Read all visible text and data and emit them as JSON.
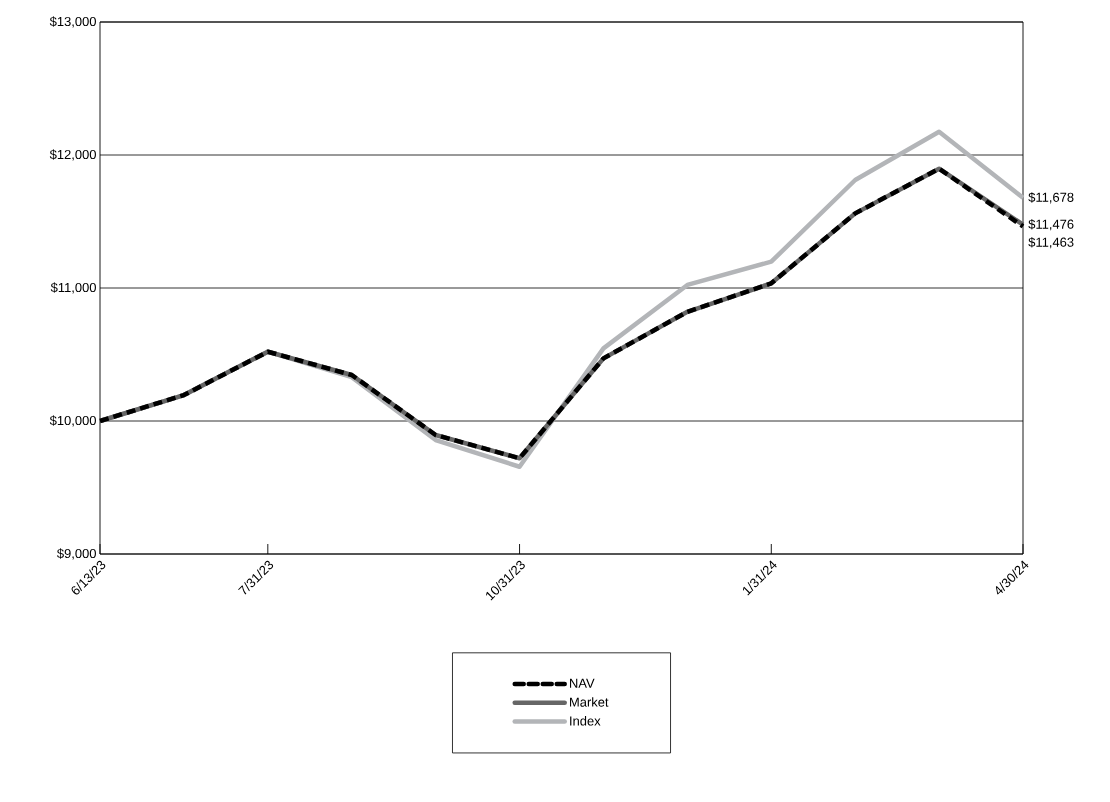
{
  "chart_data": {
    "type": "line",
    "categories": [
      "6/13/23",
      null,
      "7/31/23",
      null,
      null,
      "10/31/23",
      null,
      null,
      "1/31/24",
      null,
      null,
      "4/30/24"
    ],
    "ylim": [
      9000,
      13000
    ],
    "yticks": [
      {
        "value": 9000,
        "label": "$9,000"
      },
      {
        "value": 10000,
        "label": "$10,000"
      },
      {
        "value": 11000,
        "label": "$11,000"
      },
      {
        "value": 12000,
        "label": "$12,000"
      },
      {
        "value": 13000,
        "label": "$13,000"
      }
    ],
    "grid": "y",
    "legend": "bottom",
    "marker": "none",
    "series": [
      {
        "name": "NAV",
        "color": "#000000",
        "line_style": "dashed",
        "values": [
          10000,
          10195,
          10521,
          10346,
          9895,
          9720,
          10471,
          10821,
          11035,
          11561,
          11897,
          11463
        ],
        "value_labels": [
          null,
          null,
          null,
          null,
          null,
          null,
          null,
          null,
          null,
          null,
          null,
          "$11,463"
        ]
      },
      {
        "name": "Market",
        "color": "#666666",
        "line_style": "solid",
        "values": [
          10000,
          10195,
          10521,
          10346,
          9895,
          9720,
          10471,
          10821,
          11035,
          11561,
          11897,
          11476
        ],
        "value_labels": [
          null,
          null,
          null,
          null,
          null,
          null,
          null,
          null,
          null,
          null,
          null,
          "$11,476"
        ]
      },
      {
        "name": "Index",
        "color": "#b3b5b8",
        "line_style": "solid",
        "values": [
          10000,
          10195,
          10521,
          10330,
          9857,
          9656,
          10546,
          11023,
          11198,
          11812,
          12175,
          11678
        ],
        "value_labels": [
          null,
          null,
          null,
          null,
          null,
          null,
          null,
          null,
          null,
          null,
          null,
          "$11,678"
        ]
      }
    ]
  }
}
